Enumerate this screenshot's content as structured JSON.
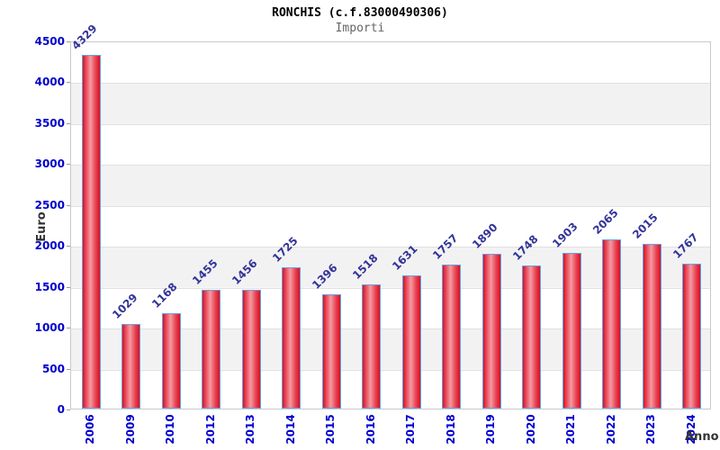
{
  "header": {
    "title": "RONCHIS (c.f.83000490306)",
    "subtitle": "Importi"
  },
  "chart_data": {
    "type": "bar",
    "title": "RONCHIS (c.f.83000490306)",
    "subtitle": "Importi",
    "xlabel": "Anno",
    "ylabel": "Euro",
    "categories": [
      "2006",
      "2009",
      "2010",
      "2012",
      "2013",
      "2014",
      "2015",
      "2016",
      "2017",
      "2018",
      "2019",
      "2020",
      "2021",
      "2022",
      "2023",
      "2024"
    ],
    "values": [
      4329,
      1029,
      1168,
      1455,
      1456,
      1725,
      1396,
      1518,
      1631,
      1757,
      1890,
      1748,
      1903,
      2065,
      2015,
      1767
    ],
    "ylim": [
      0,
      4500
    ],
    "yticks": [
      0,
      500,
      1000,
      1500,
      2000,
      2500,
      3000,
      3500,
      4000,
      4500
    ],
    "grid": "horizontal-bands-alternating",
    "legend": "none",
    "bar_labels_rotation_deg": -45,
    "xtick_rotation_deg": -90,
    "colors": {
      "bar_fill": "#e03040",
      "bar_highlight": "#f59aa1",
      "bar_edge_dark": "#d41224",
      "bar_border": "#64a0e8",
      "tick_label": "#0000cc",
      "bar_value_label": "#333399",
      "band": "#f2f2f2",
      "plot_border": "#c9c9c9",
      "axis_title": "#333333",
      "subtitle": "#666666"
    }
  }
}
